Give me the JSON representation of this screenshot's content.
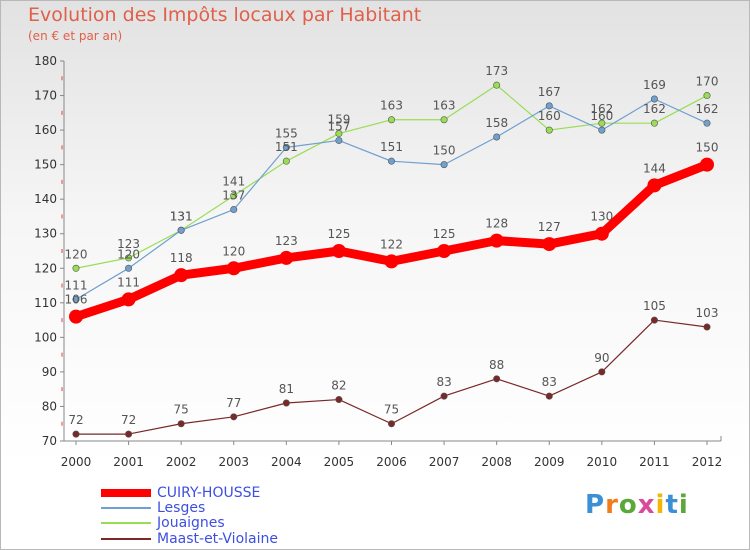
{
  "chart_data": {
    "type": "line",
    "title": "Evolution des Impôts locaux par Habitant",
    "subtitle": "(en € et par an)",
    "x": [
      "2000",
      "2001",
      "2002",
      "2003",
      "2004",
      "2005",
      "2006",
      "2007",
      "2008",
      "2009",
      "2010",
      "2011",
      "2012"
    ],
    "ylim": [
      70,
      180
    ],
    "yticks": [
      70,
      80,
      90,
      100,
      110,
      120,
      130,
      140,
      150,
      160,
      170,
      180
    ],
    "grid": false,
    "legend_position": "bottom-left",
    "series": [
      {
        "name": "CUIRY-HOUSSE",
        "color": "#ff0000",
        "values": [
          106,
          111,
          118,
          120,
          123,
          125,
          122,
          125,
          128,
          127,
          130,
          144,
          150
        ]
      },
      {
        "name": "Lesges",
        "color": "#6fa0cf",
        "values": [
          111,
          120,
          131,
          137,
          155,
          157,
          151,
          150,
          158,
          167,
          160,
          169,
          162
        ]
      },
      {
        "name": "Jouaignes",
        "color": "#99dd55",
        "values": [
          120,
          123,
          131,
          141,
          151,
          159,
          163,
          163,
          173,
          160,
          162,
          162,
          170
        ]
      },
      {
        "name": "Maast-et-Violaine",
        "color": "#7a2828",
        "values": [
          72,
          72,
          75,
          77,
          81,
          82,
          75,
          83,
          88,
          83,
          90,
          105,
          103
        ]
      }
    ]
  },
  "logo": {
    "text": "Proxiti"
  }
}
